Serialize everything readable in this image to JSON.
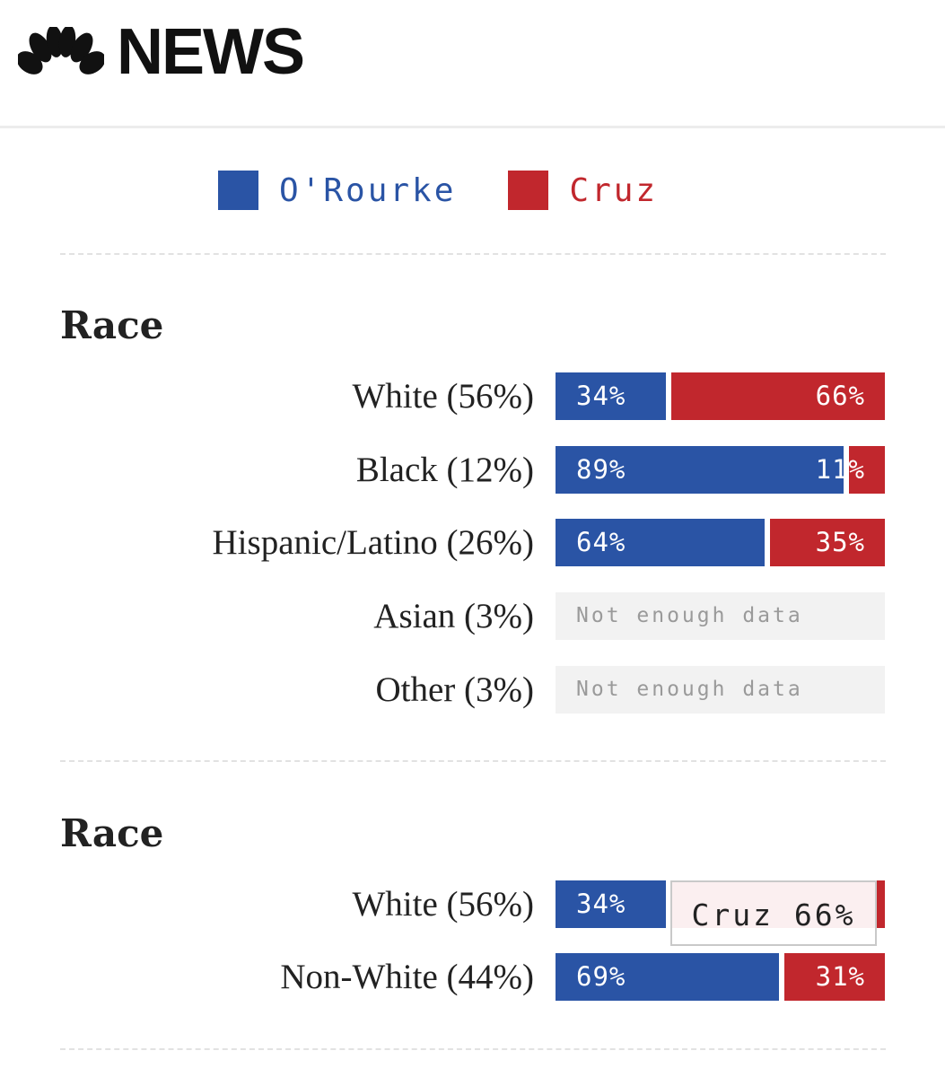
{
  "header": {
    "brand": "NEWS"
  },
  "colors": {
    "orourke": "#2a54a5",
    "cruz": "#c1272d",
    "nodata_bg": "#f2f2f2"
  },
  "legend": [
    {
      "name": "O'Rourke",
      "color": "#2a54a5"
    },
    {
      "name": "Cruz",
      "color": "#c1272d"
    }
  ],
  "chart_data": [
    {
      "type": "bar",
      "title": "Race",
      "series": [
        "O'Rourke",
        "Cruz"
      ],
      "categories": [
        "White (56%)",
        "Black (12%)",
        "Hispanic/Latino (26%)",
        "Asian (3%)",
        "Other (3%)"
      ],
      "values": [
        {
          "orourke": 34,
          "cruz": 66,
          "orourke_label": "34%",
          "cruz_label": "66%"
        },
        {
          "orourke": 89,
          "cruz": 11,
          "orourke_label": "89%",
          "cruz_label": "11%"
        },
        {
          "orourke": 64,
          "cruz": 35,
          "orourke_label": "64%",
          "cruz_label": "35%"
        },
        {
          "nodata": "Not enough data"
        },
        {
          "nodata": "Not enough data"
        }
      ]
    },
    {
      "type": "bar",
      "title": "Race",
      "series": [
        "O'Rourke",
        "Cruz"
      ],
      "categories": [
        "White (56%)",
        "Non-White (44%)"
      ],
      "values": [
        {
          "orourke": 34,
          "cruz": 66,
          "orourke_label": "34%",
          "cruz_label": ""
        },
        {
          "orourke": 69,
          "cruz": 31,
          "orourke_label": "69%",
          "cruz_label": "31%"
        }
      ]
    }
  ],
  "tooltip": {
    "text": "Cruz 66%"
  }
}
